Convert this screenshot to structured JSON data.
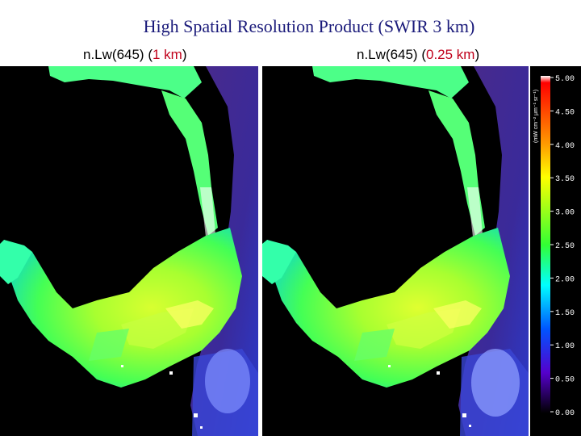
{
  "title": "High Spatial Resolution Product (SWIR 3 km)",
  "panels": [
    {
      "prefix": "n.Lw(645) (",
      "highlight": "1 km",
      "suffix": ")"
    },
    {
      "prefix": "n.Lw(645) (",
      "highlight": "0.25 km",
      "suffix": ")"
    }
  ],
  "colorbar": {
    "unit": "(mW cm⁻² μm⁻¹ sr⁻¹)",
    "ticks": [
      "5.00",
      "4.50",
      "4.00",
      "3.50",
      "3.00",
      "2.50",
      "2.00",
      "1.50",
      "1.00",
      "0.50",
      "0.00"
    ],
    "colors": {
      "top": "#ffffff",
      "red": "#ff0000",
      "orange": "#ff9900",
      "yellow": "#ffff00",
      "green": "#33ff33",
      "cyan": "#00ffff",
      "blue": "#0055ff",
      "violet": "#5500cc",
      "black": "#000000"
    }
  }
}
